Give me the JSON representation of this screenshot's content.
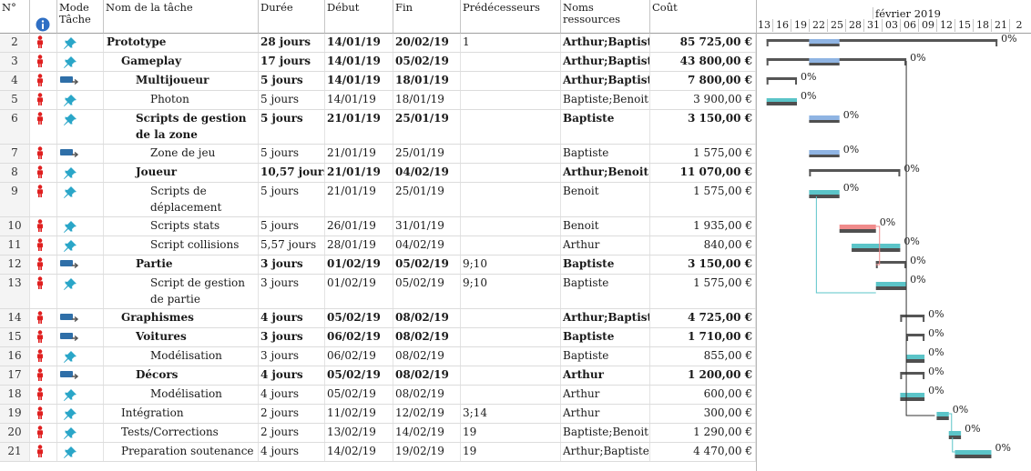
{
  "headers": {
    "num": "N°",
    "mode": "Mode Tâche",
    "name": "Nom de la tâche",
    "duration": "Durée",
    "start": "Début",
    "end": "Fin",
    "pred": "Prédécesseurs",
    "resources": "Noms ressources",
    "cost": "Coût",
    "info_icon": "info-icon"
  },
  "timeline": {
    "month": "février 2019",
    "days": [
      "13",
      "16",
      "19",
      "22",
      "25",
      "28",
      "31",
      "03",
      "06",
      "09",
      "12",
      "15",
      "18",
      "21",
      "2"
    ]
  },
  "colors": {
    "planned": "#8fb4e3",
    "baseline": "#4f4f4f",
    "teal": "#5bc4c8",
    "critical": "#f08b8b",
    "summary": "#555555",
    "indicator": "#e02020",
    "pin": "#2aa6c8"
  },
  "rows": [
    {
      "id": "2",
      "name": "Prototype",
      "level": 0,
      "bold": true,
      "mode": "pin",
      "duration": "28 jours",
      "start": "14/01/19",
      "end": "20/02/19",
      "pred": "1",
      "resources": "Arthur;Baptiste",
      "cost": "85 725,00 €",
      "pct": "0%"
    },
    {
      "id": "3",
      "name": "Gameplay",
      "level": 1,
      "bold": true,
      "mode": "pin",
      "duration": "17 jours",
      "start": "14/01/19",
      "end": "05/02/19",
      "pred": "",
      "resources": "Arthur;Baptiste",
      "cost": "43 800,00 €",
      "pct": "0%"
    },
    {
      "id": "4",
      "name": "Multijoueur",
      "level": 2,
      "bold": true,
      "mode": "auto",
      "duration": "5 jours",
      "start": "14/01/19",
      "end": "18/01/19",
      "pred": "",
      "resources": "Arthur;Baptiste",
      "cost": "7 800,00 €",
      "pct": "0%"
    },
    {
      "id": "5",
      "name": "Photon",
      "level": 3,
      "bold": false,
      "mode": "pin",
      "duration": "5 jours",
      "start": "14/01/19",
      "end": "18/01/19",
      "pred": "",
      "resources": "Baptiste;Benoit",
      "cost": "3 900,00 €",
      "pct": "0%"
    },
    {
      "id": "6",
      "name": "Scripts de gestion de la zone",
      "level": 2,
      "bold": true,
      "mode": "pin",
      "duration": "5 jours",
      "start": "21/01/19",
      "end": "25/01/19",
      "pred": "",
      "resources": "Baptiste",
      "cost": "3 150,00 €",
      "pct": "0%"
    },
    {
      "id": "7",
      "name": "Zone de jeu",
      "level": 3,
      "bold": false,
      "mode": "auto",
      "duration": "5 jours",
      "start": "21/01/19",
      "end": "25/01/19",
      "pred": "",
      "resources": "Baptiste",
      "cost": "1 575,00 €",
      "pct": "0%"
    },
    {
      "id": "8",
      "name": "Joueur",
      "level": 2,
      "bold": true,
      "mode": "pin",
      "duration": "10,57 jours",
      "start": "21/01/19",
      "end": "04/02/19",
      "pred": "",
      "resources": "Arthur;Benoit",
      "cost": "11 070,00 €",
      "pct": "0%"
    },
    {
      "id": "9",
      "name": "Scripts de déplacement",
      "level": 3,
      "bold": false,
      "mode": "pin",
      "duration": "5 jours",
      "start": "21/01/19",
      "end": "25/01/19",
      "pred": "",
      "resources": "Benoit",
      "cost": "1 575,00 €",
      "pct": "0%"
    },
    {
      "id": "10",
      "name": "Scripts stats",
      "level": 3,
      "bold": false,
      "mode": "pin",
      "duration": "5 jours",
      "start": "26/01/19",
      "end": "31/01/19",
      "pred": "",
      "resources": "Benoit",
      "cost": "1 935,00 €",
      "pct": "0%"
    },
    {
      "id": "11",
      "name": "Script collisions",
      "level": 3,
      "bold": false,
      "mode": "pin",
      "duration": "5,57 jours",
      "start": "28/01/19",
      "end": "04/02/19",
      "pred": "",
      "resources": "Arthur",
      "cost": "840,00 €",
      "pct": "0%"
    },
    {
      "id": "12",
      "name": "Partie",
      "level": 2,
      "bold": true,
      "mode": "auto",
      "duration": "3 jours",
      "start": "01/02/19",
      "end": "05/02/19",
      "pred": "9;10",
      "resources": "Baptiste",
      "cost": "3 150,00 €",
      "pct": "0%"
    },
    {
      "id": "13",
      "name": "Script de gestion de partie",
      "level": 3,
      "bold": false,
      "mode": "pin",
      "duration": "3 jours",
      "start": "01/02/19",
      "end": "05/02/19",
      "pred": "9;10",
      "resources": "Baptiste",
      "cost": "1 575,00 €",
      "pct": "0%"
    },
    {
      "id": "14",
      "name": "Graphismes",
      "level": 1,
      "bold": true,
      "mode": "auto",
      "duration": "4 jours",
      "start": "05/02/19",
      "end": "08/02/19",
      "pred": "",
      "resources": "Arthur;Baptiste",
      "cost": "4 725,00 €",
      "pct": "0%"
    },
    {
      "id": "15",
      "name": "Voitures",
      "level": 2,
      "bold": true,
      "mode": "auto",
      "duration": "3 jours",
      "start": "06/02/19",
      "end": "08/02/19",
      "pred": "",
      "resources": "Baptiste",
      "cost": "1 710,00 €",
      "pct": "0%"
    },
    {
      "id": "16",
      "name": "Modélisation",
      "level": 3,
      "bold": false,
      "mode": "pin",
      "duration": "3 jours",
      "start": "06/02/19",
      "end": "08/02/19",
      "pred": "",
      "resources": "Baptiste",
      "cost": "855,00 €",
      "pct": "0%"
    },
    {
      "id": "17",
      "name": "Décors",
      "level": 2,
      "bold": true,
      "mode": "auto",
      "duration": "4 jours",
      "start": "05/02/19",
      "end": "08/02/19",
      "pred": "",
      "resources": "Arthur",
      "cost": "1 200,00 €",
      "pct": "0%"
    },
    {
      "id": "18",
      "name": "Modélisation",
      "level": 3,
      "bold": false,
      "mode": "pin",
      "duration": "4 jours",
      "start": "05/02/19",
      "end": "08/02/19",
      "pred": "",
      "resources": "Arthur",
      "cost": "600,00 €",
      "pct": "0%"
    },
    {
      "id": "19",
      "name": "Intégration",
      "level": 1,
      "bold": false,
      "mode": "pin",
      "duration": "2 jours",
      "start": "11/02/19",
      "end": "12/02/19",
      "pred": "3;14",
      "resources": "Arthur",
      "cost": "300,00 €",
      "pct": "0%"
    },
    {
      "id": "20",
      "name": "Tests/Corrections",
      "level": 1,
      "bold": false,
      "mode": "pin",
      "duration": "2 jours",
      "start": "13/02/19",
      "end": "14/02/19",
      "pred": "19",
      "resources": "Baptiste;Benoit",
      "cost": "1 290,00 €",
      "pct": "0%"
    },
    {
      "id": "21",
      "name": "Preparation soutenance",
      "level": 1,
      "bold": false,
      "mode": "pin",
      "duration": "4 jours",
      "start": "14/02/19",
      "end": "19/02/19",
      "pred": "19",
      "resources": "Arthur;Baptiste",
      "cost": "4 470,00 €",
      "pct": "0%"
    }
  ]
}
